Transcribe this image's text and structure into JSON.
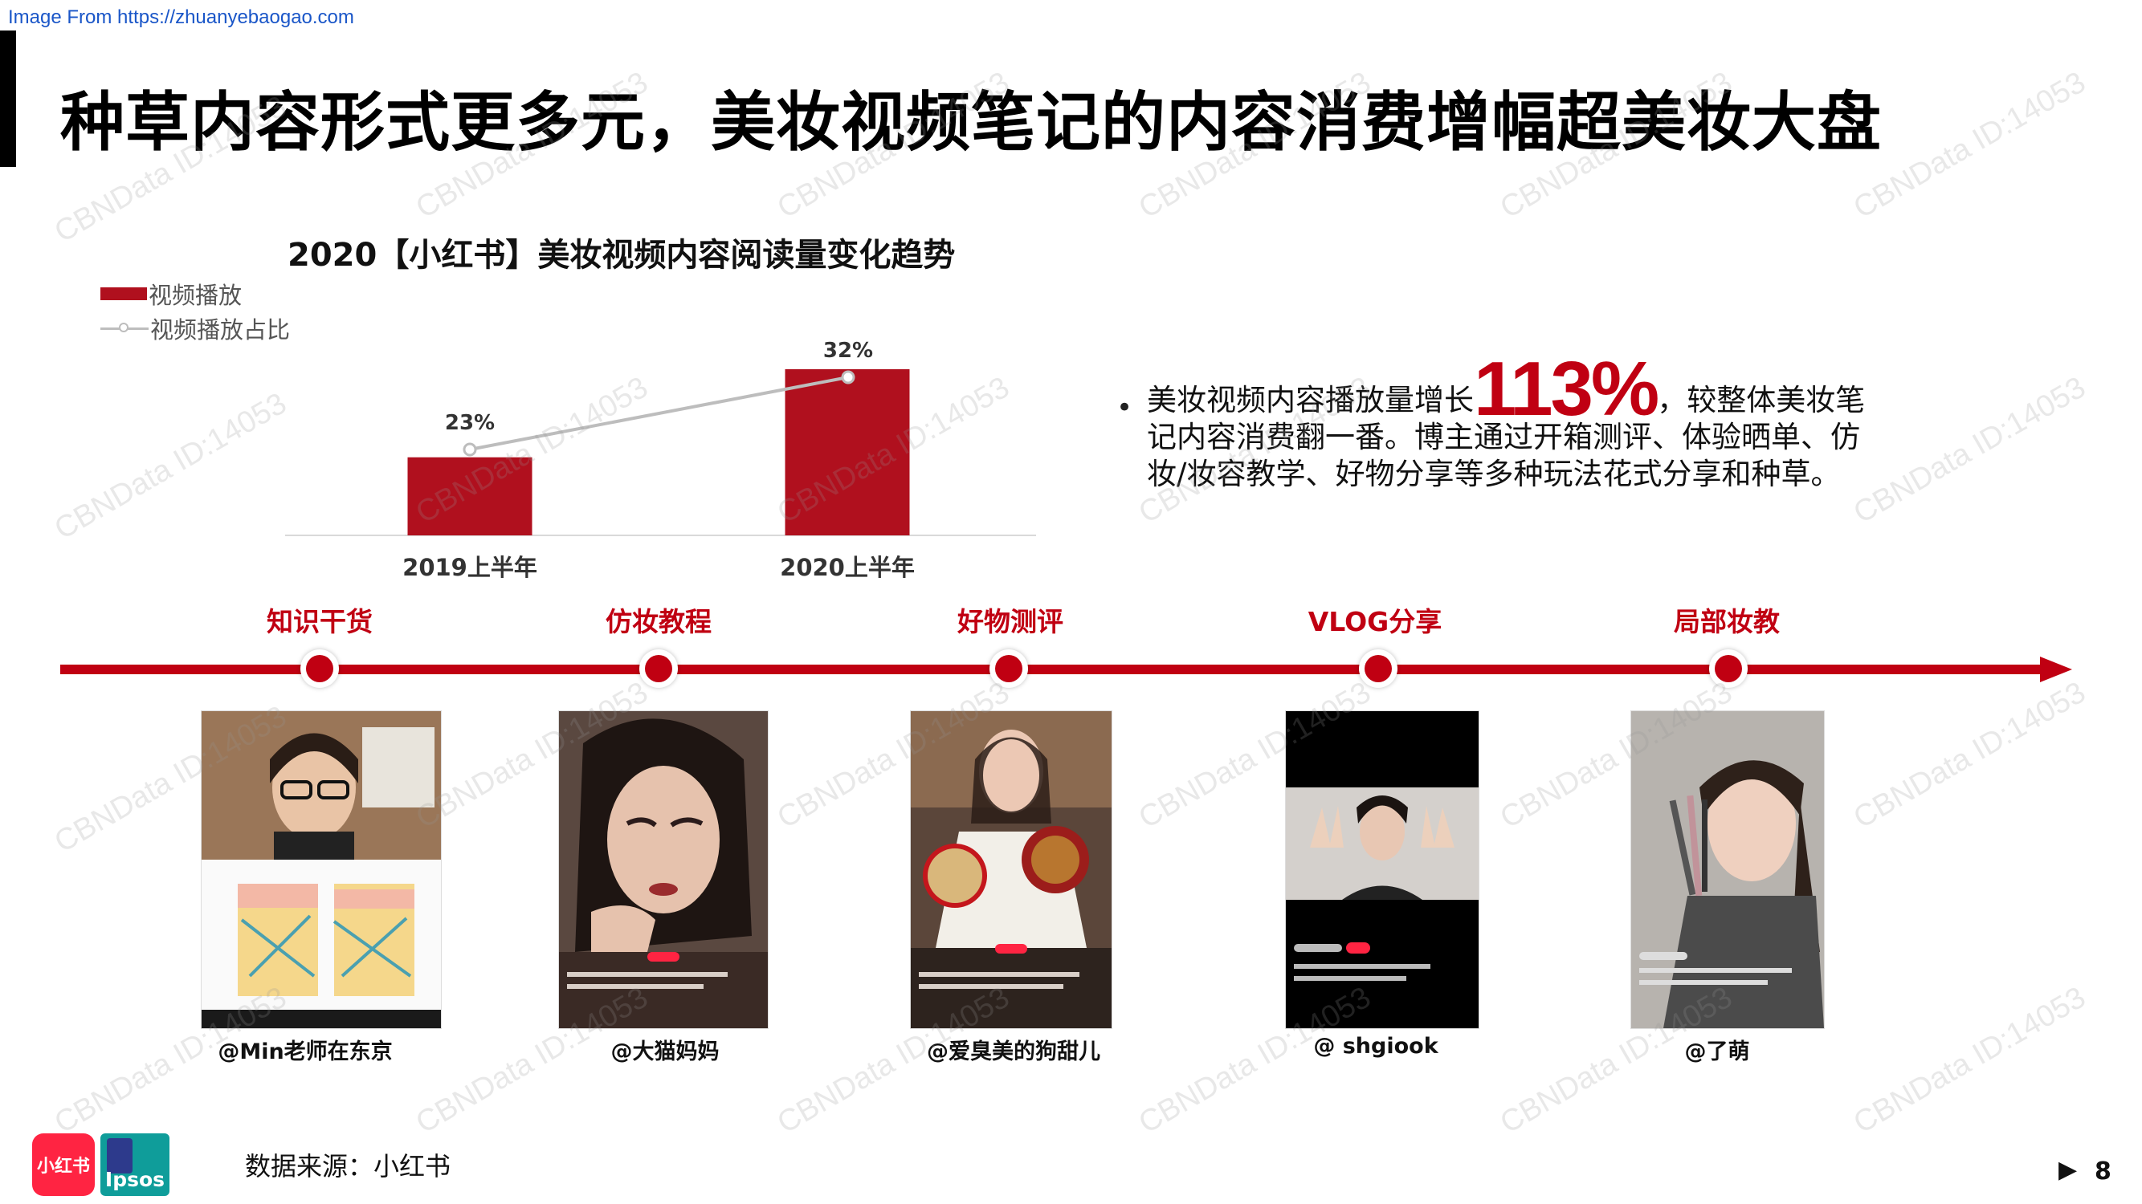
{
  "source_url": "Image From https://zhuanyebaogao.com",
  "page_title": "种草内容形式更多元，美妆视频笔记的内容消费增幅超美妆大盘",
  "chart_data": {
    "type": "bar",
    "title": "2020【小红书】美妆视频内容阅读量变化趋势",
    "categories": [
      "2019上半年",
      "2020上半年"
    ],
    "series": [
      {
        "name": "视频播放",
        "type": "bar",
        "values": [
          47,
          100
        ]
      },
      {
        "name": "视频播放占比",
        "type": "line",
        "values": [
          23,
          32
        ],
        "labels": [
          "23%",
          "32%"
        ]
      }
    ],
    "legend_position": "top-left",
    "grid": false
  },
  "bullet": {
    "before": "美妆视频内容播放量增长",
    "highlight": "113%",
    "after": "，较整体美妆笔记内容消费翻一番。博主通过开箱测评、体验晒单、仿妆/妆容教学、好物分享等多种玩法花式分享和种草。"
  },
  "timeline": {
    "items": [
      {
        "label": "知识干货",
        "handle": "@Min老师在东京"
      },
      {
        "label": "仿妆教程",
        "handle": "@大猫妈妈"
      },
      {
        "label": "好物测评",
        "handle": "@爱臭美的狗甜儿"
      },
      {
        "label": "VLOG分享",
        "handle": "@ shgiook"
      },
      {
        "label": "局部妆教",
        "handle": "@了萌"
      }
    ]
  },
  "data_source": "数据来源：小红书",
  "logos": {
    "xhs": "小红书",
    "ipsos": "Ipsos"
  },
  "page_number": "8",
  "page_next_icon": "▶",
  "watermark": "CBNData ID:14053",
  "colors": {
    "accent": "#c00012",
    "bar": "#b0101e",
    "line": "#bdbdbd"
  }
}
